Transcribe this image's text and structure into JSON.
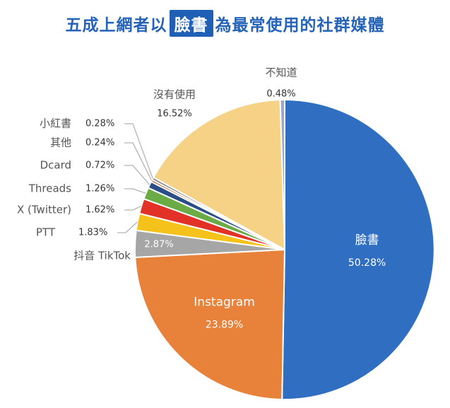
{
  "chart_data": {
    "type": "pie",
    "title": {
      "before": "五成上網者以",
      "highlight": "臉書",
      "after": "為最常使用的社群媒體"
    },
    "slices": [
      {
        "name": "臉書",
        "value": 50.28,
        "label": "50.28%",
        "color": "#2f6ec1"
      },
      {
        "name": "Instagram",
        "value": 23.89,
        "label": "23.89%",
        "color": "#e8823a"
      },
      {
        "name": "抖音 TikTok",
        "value": 2.87,
        "label": "2.87%",
        "color": "#a6a6a6"
      },
      {
        "name": "PTT",
        "value": 1.83,
        "label": "1.83%",
        "color": "#f5c21b"
      },
      {
        "name": "X (Twitter)",
        "value": 1.62,
        "label": "1.62%",
        "color": "#e23228"
      },
      {
        "name": "Threads",
        "value": 1.26,
        "label": "1.26%",
        "color": "#6aab45"
      },
      {
        "name": "Dcard",
        "value": 0.72,
        "label": "0.72%",
        "color": "#2b4e86"
      },
      {
        "name": "其他",
        "value": 0.24,
        "label": "0.24%",
        "color": "#b35a1f"
      },
      {
        "name": "小紅書",
        "value": 0.28,
        "label": "0.28%",
        "color": "#7a7a7a"
      },
      {
        "name": "沒有使用",
        "value": 16.52,
        "label": "16.52%",
        "color": "#f6d287"
      },
      {
        "name": "不知道",
        "value": 0.48,
        "label": "0.48%",
        "color": "#9da8c4"
      }
    ]
  }
}
